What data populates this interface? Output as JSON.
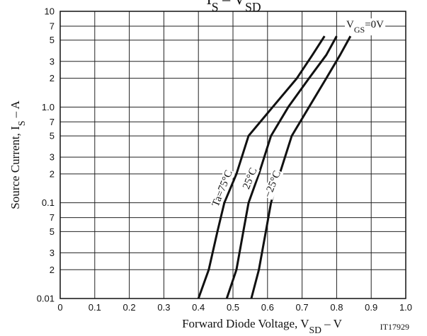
{
  "chart_data": {
    "type": "line",
    "title": [
      {
        "text": "I"
      },
      {
        "text": "S",
        "sub": true
      },
      {
        "text": " – "
      },
      {
        "text": "V"
      },
      {
        "text": "SD",
        "sub": true
      }
    ],
    "x_label": [
      {
        "text": "Forward Diode Voltage, V"
      },
      {
        "text": "SD",
        "sub": true
      },
      {
        "text": " – V"
      }
    ],
    "y_label": [
      {
        "text": "Source Current, I"
      },
      {
        "text": "S",
        "sub": true
      },
      {
        "text": " – A"
      }
    ],
    "annotation": [
      {
        "text": "V"
      },
      {
        "text": "GS",
        "sub": true
      },
      {
        "text": "=0V"
      }
    ],
    "figure_code": "IT17929",
    "log_y": true,
    "grid": true,
    "xlim": [
      0,
      1.0
    ],
    "ylim": [
      0.01,
      10
    ],
    "xticks": [
      0,
      0.1,
      0.2,
      0.3,
      0.4,
      0.5,
      0.6,
      0.7,
      0.8,
      0.9,
      {
        "value": 1.0,
        "label": "1.0"
      }
    ],
    "yticks": [
      0.01,
      {
        "value": 0.02,
        "label": "2"
      },
      {
        "value": 0.03,
        "label": "3"
      },
      {
        "value": 0.05,
        "label": "5"
      },
      {
        "value": 0.07,
        "label": "7"
      },
      0.1,
      {
        "value": 0.2,
        "label": "2"
      },
      {
        "value": 0.3,
        "label": "3"
      },
      {
        "value": 0.5,
        "label": "5"
      },
      {
        "value": 0.7,
        "label": "7"
      },
      {
        "value": 1.0,
        "label": "1.0"
      },
      {
        "value": 2,
        "label": "2"
      },
      {
        "value": 3,
        "label": "3"
      },
      {
        "value": 5,
        "label": "5"
      },
      {
        "value": 7,
        "label": "7"
      },
      10
    ],
    "series": [
      {
        "name": "Ta=75°C",
        "color": "#111111",
        "x": [
          0.4,
          0.43,
          0.455,
          0.475,
          0.51,
          0.545,
          0.615,
          0.685,
          0.73,
          0.765
        ],
        "values": [
          0.01,
          0.02,
          0.05,
          0.1,
          0.2,
          0.5,
          1,
          2,
          3.5,
          5.5
        ]
      },
      {
        "name": "25°C",
        "color": "#111111",
        "x": [
          0.482,
          0.51,
          0.53,
          0.545,
          0.575,
          0.61,
          0.66,
          0.72,
          0.77,
          0.8
        ],
        "values": [
          0.01,
          0.02,
          0.05,
          0.1,
          0.2,
          0.5,
          1,
          2,
          3.5,
          5.5
        ]
      },
      {
        "name": "−25°C",
        "color": "#111111",
        "x": [
          0.553,
          0.575,
          0.595,
          0.61,
          0.635,
          0.67,
          0.72,
          0.77,
          0.81,
          0.84
        ],
        "values": [
          0.01,
          0.02,
          0.05,
          0.1,
          0.2,
          0.5,
          1,
          2,
          3.5,
          5.5
        ]
      }
    ]
  }
}
